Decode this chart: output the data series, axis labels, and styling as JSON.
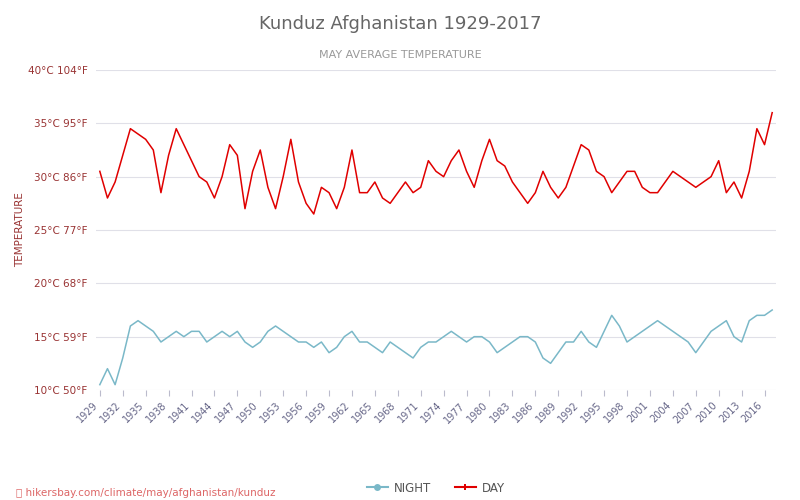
{
  "title": "Kunduz Afghanistan 1929-2017",
  "subtitle": "MAY AVERAGE TEMPERATURE",
  "ylabel": "TEMPERATURE",
  "watermark": "hikersbay.com/climate/may/afghanistan/kunduz",
  "x_start": 1929,
  "x_end": 2017,
  "ylim": [
    10,
    40
  ],
  "yticks_c": [
    10,
    15,
    20,
    25,
    30,
    35,
    40
  ],
  "ytick_labels": [
    "10°C 50°F",
    "15°C 59°F",
    "20°C 68°F",
    "25°C 77°F",
    "30°C 86°F",
    "35°C 95°F",
    "40°C 104°F"
  ],
  "xticks": [
    1929,
    1932,
    1935,
    1938,
    1941,
    1944,
    1947,
    1950,
    1953,
    1956,
    1959,
    1962,
    1965,
    1968,
    1971,
    1974,
    1977,
    1980,
    1983,
    1986,
    1989,
    1992,
    1995,
    1998,
    2001,
    2004,
    2007,
    2010,
    2013,
    2016
  ],
  "day_color": "#e00000",
  "night_color": "#7ab8c8",
  "background_color": "#ffffff",
  "grid_color": "#e0e0e8",
  "title_color": "#666666",
  "subtitle_color": "#999999",
  "ylabel_color": "#993333",
  "ytick_color": "#993333",
  "xtick_color": "#666688",
  "watermark_color": "#dd6666",
  "day_data": [
    30.5,
    28.0,
    29.5,
    32.0,
    34.5,
    34.0,
    33.5,
    32.5,
    28.5,
    32.0,
    34.5,
    33.0,
    31.5,
    30.0,
    29.5,
    28.0,
    30.0,
    33.0,
    32.0,
    27.0,
    30.5,
    32.5,
    29.0,
    27.0,
    30.0,
    33.5,
    29.5,
    27.5,
    26.5,
    29.0,
    28.5,
    27.0,
    29.0,
    32.5,
    28.5,
    28.5,
    29.5,
    28.0,
    27.5,
    28.5,
    29.5,
    28.5,
    29.0,
    31.5,
    30.5,
    30.0,
    31.5,
    32.5,
    30.5,
    29.0,
    31.5,
    33.5,
    31.5,
    31.0,
    29.5,
    28.5,
    27.5,
    28.5,
    30.5,
    29.0,
    28.0,
    29.0,
    31.0,
    33.0,
    32.5,
    30.5,
    30.0,
    28.5,
    29.5,
    30.5,
    30.5,
    29.0,
    28.5,
    28.5,
    29.5,
    30.5,
    30.0,
    29.5,
    29.0,
    29.5,
    30.0,
    31.5,
    28.5,
    29.5,
    28.0,
    30.5,
    34.5,
    33.0,
    36.0
  ],
  "night_data": [
    10.5,
    12.0,
    10.5,
    13.0,
    16.0,
    16.5,
    16.0,
    15.5,
    14.5,
    15.0,
    15.5,
    15.0,
    15.5,
    15.5,
    14.5,
    15.0,
    15.5,
    15.0,
    15.5,
    14.5,
    14.0,
    14.5,
    15.5,
    16.0,
    15.5,
    15.0,
    14.5,
    14.5,
    14.0,
    14.5,
    13.5,
    14.0,
    15.0,
    15.5,
    14.5,
    14.5,
    14.0,
    13.5,
    14.5,
    14.0,
    13.5,
    13.0,
    14.0,
    14.5,
    14.5,
    15.0,
    15.5,
    15.0,
    14.5,
    15.0,
    15.0,
    14.5,
    13.5,
    14.0,
    14.5,
    15.0,
    15.0,
    14.5,
    13.0,
    12.5,
    13.5,
    14.5,
    14.5,
    15.5,
    14.5,
    14.0,
    15.5,
    17.0,
    16.0,
    14.5,
    15.0,
    15.5,
    16.0,
    16.5,
    16.0,
    15.5,
    15.0,
    14.5,
    13.5,
    14.5,
    15.5,
    16.0,
    16.5,
    15.0,
    14.5,
    16.5,
    17.0,
    17.0,
    17.5
  ]
}
